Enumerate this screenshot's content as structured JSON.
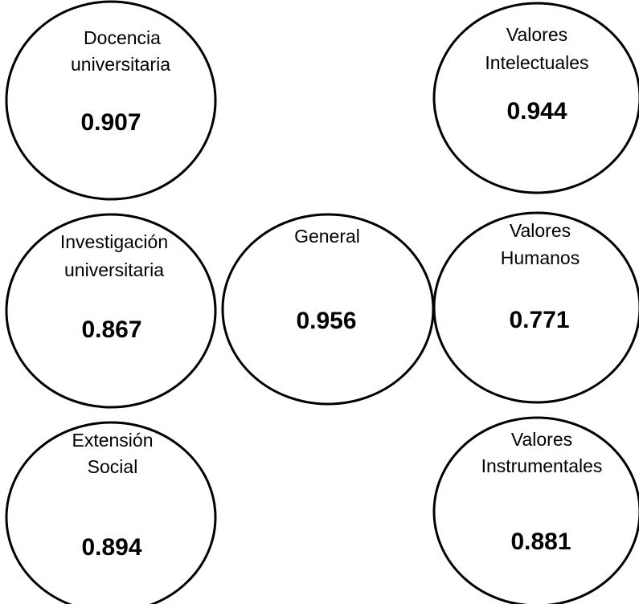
{
  "nodes": [
    {
      "id": "docencia",
      "label_lines": [
        "Docencia",
        "universitaria"
      ],
      "value": "0.907"
    },
    {
      "id": "investigacion",
      "label_lines": [
        "Investigación",
        "universitaria"
      ],
      "value": "0.867"
    },
    {
      "id": "extension",
      "label_lines": [
        "Extensión",
        "Social"
      ],
      "value": "0.894"
    },
    {
      "id": "general",
      "label_lines": [
        "General"
      ],
      "value": "0.956"
    },
    {
      "id": "valores-intelectuales",
      "label_lines": [
        "Valores",
        "Intelectuales"
      ],
      "value": "0.944"
    },
    {
      "id": "valores-humanos",
      "label_lines": [
        "Valores",
        "Humanos"
      ],
      "value": "0.771"
    },
    {
      "id": "valores-instrumentales",
      "label_lines": [
        "Valores",
        "Instrumentales"
      ],
      "value": "0.881"
    }
  ],
  "colors": {
    "stroke": "#000000",
    "fill": "#ffffff",
    "text": "#000000"
  }
}
